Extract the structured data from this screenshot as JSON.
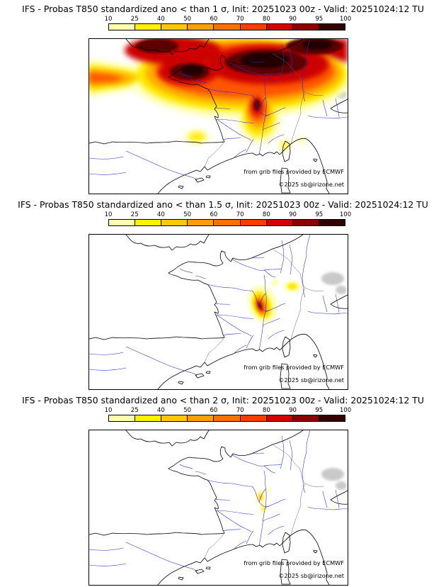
{
  "colorbar": {
    "ticks": [
      "10",
      "25",
      "40",
      "50",
      "60",
      "70",
      "80",
      "90",
      "95",
      "100"
    ],
    "colors": [
      "#ffffb2",
      "#fff000",
      "#ffc800",
      "#ff9e00",
      "#ff7000",
      "#ff3c00",
      "#d20000",
      "#8c0000",
      "#320000"
    ]
  },
  "panels": [
    {
      "title": "IFS - Probas T850  standardized ano < than 1 σ, Init: 20251023 00z - Valid: 20251024:12 TU",
      "credit1": "from grib files provided by ECMWF",
      "credit2": "©2025 sb@irizone.net"
    },
    {
      "title": "IFS - Probas T850  standardized ano < than 1.5 σ, Init: 20251023 00z - Valid: 20251024:12 TU",
      "credit1": "from grib files provided by ECMWF",
      "credit2": "©2025 sb@irizone.net"
    },
    {
      "title": "IFS - Probas T850  standardized ano < than 2 σ, Init: 20251023 00z - Valid: 20251024:12 TU",
      "credit1": "from grib files provided by ECMWF",
      "credit2": "©2025 sb@irizone.net"
    }
  ],
  "chart_data": [
    {
      "type": "heatmap",
      "title": "IFS - Probas T850  standardized ano < than 1 σ, Init: 20251023 00z - Valid: 20251024:12 TU",
      "units": "%",
      "legend_ticks": [
        10,
        25,
        40,
        50,
        60,
        70,
        80,
        90,
        95,
        100
      ],
      "legend_position": "top",
      "region": "Western Europe (England, France, Spain, NW Italy)",
      "field_summary": [
        {
          "area": "southern England and English Channel",
          "probability": "90-100"
        },
        {
          "area": "northern and northeastern France into Germany",
          "probability": "95-100"
        },
        {
          "area": "central France (Paris basin)",
          "probability": "90-100"
        },
        {
          "area": "Rhone valley down to Mediterranean coast",
          "probability": "80-100"
        },
        {
          "area": "band tapering west over the Atlantic",
          "probability": "10-80"
        },
        {
          "area": "eastern Pyrenees",
          "probability": "10-40"
        },
        {
          "area": "Corsica / Ligurian coast spots",
          "probability": "10-25"
        }
      ]
    },
    {
      "type": "heatmap",
      "title": "IFS - Probas T850  standardized ano < than 1.5 σ, Init: 20251023 00z - Valid: 20251024:12 TU",
      "units": "%",
      "legend_ticks": [
        10,
        25,
        40,
        50,
        60,
        70,
        80,
        90,
        95,
        100
      ],
      "legend_position": "top",
      "region": "Western Europe (France-centered)",
      "field_summary": [
        {
          "area": "French Alps (elongated NE-SW cell)",
          "probability": "40-95"
        },
        {
          "area": "NW Italy / Piedmont spot",
          "probability": "10-40"
        },
        {
          "area": "small spot north of the Alpine cell",
          "probability": "10-25"
        }
      ]
    },
    {
      "type": "heatmap",
      "title": "IFS - Probas T850  standardized ano < than 2 σ, Init: 20251023 00z - Valid: 20251024:12 TU",
      "units": "%",
      "legend_ticks": [
        10,
        25,
        40,
        50,
        60,
        70,
        80,
        90,
        95,
        100
      ],
      "legend_position": "top",
      "region": "Western Europe (France-centered)",
      "field_summary": [
        {
          "area": "French Alps small spots",
          "probability": "10-40"
        }
      ]
    }
  ]
}
